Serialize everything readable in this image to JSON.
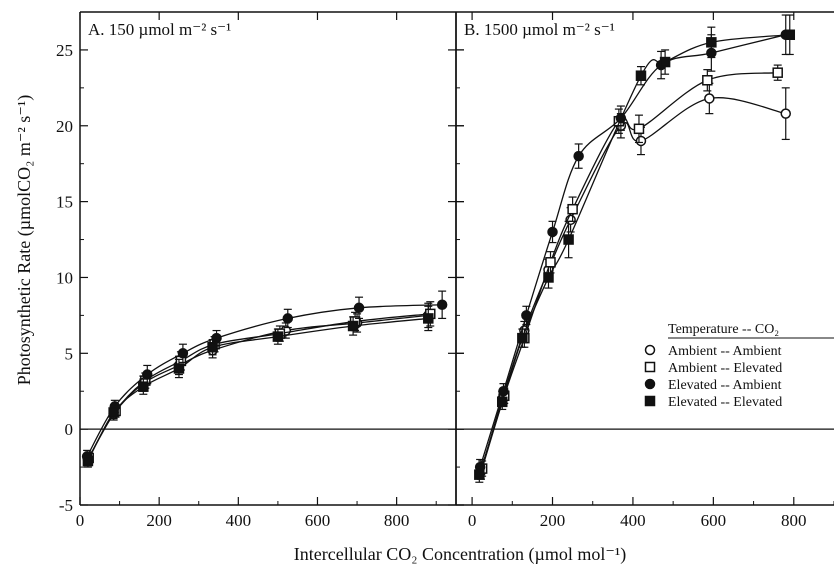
{
  "y_axis_title": "Photosynthetic Rate  (µmolCO₂ m⁻² s⁻¹)",
  "x_axis_title": "Intercellular CO₂  Concentration (µmol  mol⁻¹)",
  "legend": {
    "header": "Temperature  --  CO₂",
    "entries": [
      {
        "label": "Ambient  --  Ambient",
        "marker": "open-circle"
      },
      {
        "label": "Ambient  --  Elevated",
        "marker": "open-square"
      },
      {
        "label": "Elevated  --  Ambient",
        "marker": "filled-circle"
      },
      {
        "label": "Elevated  --  Elevated",
        "marker": "filled-square"
      }
    ]
  },
  "colors": {
    "ink": "#111111",
    "background": "#ffffff"
  },
  "chart_data": [
    {
      "type": "scatter",
      "title": "A. 150 µmol m⁻² s⁻¹",
      "xlim": [
        0,
        950
      ],
      "ylim": [
        -5,
        27.5
      ],
      "xticks": [
        0,
        200,
        400,
        600,
        800
      ],
      "yticks": [
        -5,
        0,
        5,
        10,
        15,
        20,
        25
      ],
      "zero_line": true,
      "series": [
        {
          "name": "Ambient -- Ambient",
          "marker": "open-circle",
          "x": [
            20,
            85,
            160,
            250,
            335,
            520,
            700,
            880
          ],
          "y": [
            -2.0,
            1.0,
            3.0,
            4.2,
            5.2,
            6.5,
            7.0,
            7.5
          ],
          "err": [
            0.4,
            0.4,
            0.5,
            0.6,
            0.5,
            0.5,
            0.6,
            0.8
          ]
        },
        {
          "name": "Ambient -- Elevated",
          "marker": "open-square",
          "x": [
            22,
            90,
            165,
            255,
            340,
            505,
            695,
            885
          ],
          "y": [
            -1.9,
            1.2,
            3.2,
            4.5,
            5.6,
            6.3,
            7.1,
            7.6
          ],
          "err": [
            0.4,
            0.4,
            0.5,
            0.6,
            0.5,
            0.5,
            0.6,
            0.8
          ]
        },
        {
          "name": "Elevated -- Ambient",
          "marker": "filled-circle",
          "x": [
            18,
            88,
            170,
            260,
            345,
            525,
            705,
            915
          ],
          "y": [
            -1.8,
            1.5,
            3.6,
            5.0,
            6.0,
            7.3,
            8.0,
            8.2
          ],
          "err": [
            0.4,
            0.4,
            0.6,
            0.6,
            0.5,
            0.6,
            0.7,
            0.9
          ]
        },
        {
          "name": "Elevated -- Elevated",
          "marker": "filled-square",
          "x": [
            20,
            85,
            160,
            250,
            335,
            500,
            690,
            880
          ],
          "y": [
            -2.1,
            1.1,
            2.8,
            4.0,
            5.4,
            6.1,
            6.8,
            7.3
          ],
          "err": [
            0.4,
            0.4,
            0.5,
            0.6,
            0.5,
            0.5,
            0.6,
            0.8
          ]
        }
      ]
    },
    {
      "type": "scatter",
      "title": "B. 1500 µmol m⁻² s⁻¹",
      "xlim": [
        -40,
        900
      ],
      "ylim": [
        -5,
        27.5
      ],
      "xticks": [
        0,
        200,
        400,
        600,
        800
      ],
      "yticks": [
        -5,
        0,
        5,
        10,
        15,
        20,
        25
      ],
      "zero_line": true,
      "series": [
        {
          "name": "Ambient -- Ambient",
          "marker": "open-circle",
          "x": [
            22,
            75,
            130,
            190,
            245,
            370,
            420,
            590,
            780
          ],
          "y": [
            -2.8,
            2.0,
            6.5,
            10.5,
            13.8,
            20.0,
            19.0,
            21.8,
            20.8
          ],
          "err": [
            0.5,
            0.5,
            0.6,
            0.7,
            0.8,
            0.8,
            0.9,
            1.0,
            1.7
          ]
        },
        {
          "name": "Ambient -- Elevated",
          "marker": "open-square",
          "x": [
            25,
            80,
            130,
            195,
            250,
            365,
            415,
            585,
            760
          ],
          "y": [
            -2.6,
            2.2,
            6.0,
            11.0,
            14.5,
            20.3,
            19.8,
            23.0,
            23.5
          ],
          "err": [
            0.5,
            0.5,
            0.6,
            0.7,
            0.8,
            0.8,
            0.9,
            0.7,
            0.5
          ]
        },
        {
          "name": "Elevated -- Ambient",
          "marker": "filled-circle",
          "x": [
            20,
            78,
            135,
            200,
            265,
            370,
            470,
            595,
            780
          ],
          "y": [
            -2.5,
            2.5,
            7.5,
            13.0,
            18.0,
            20.5,
            24.0,
            24.8,
            26.0
          ],
          "err": [
            0.5,
            0.5,
            0.6,
            0.7,
            0.8,
            0.8,
            0.9,
            1.2,
            1.3
          ]
        },
        {
          "name": "Elevated -- Elevated",
          "marker": "filled-square",
          "x": [
            18,
            75,
            125,
            190,
            240,
            420,
            480,
            595,
            790
          ],
          "y": [
            -3.0,
            1.8,
            6.0,
            10.0,
            12.5,
            23.3,
            24.2,
            25.5,
            26.0
          ],
          "err": [
            0.5,
            0.5,
            0.6,
            0.7,
            1.2,
            0.6,
            0.8,
            1.0,
            1.3
          ]
        }
      ]
    }
  ]
}
